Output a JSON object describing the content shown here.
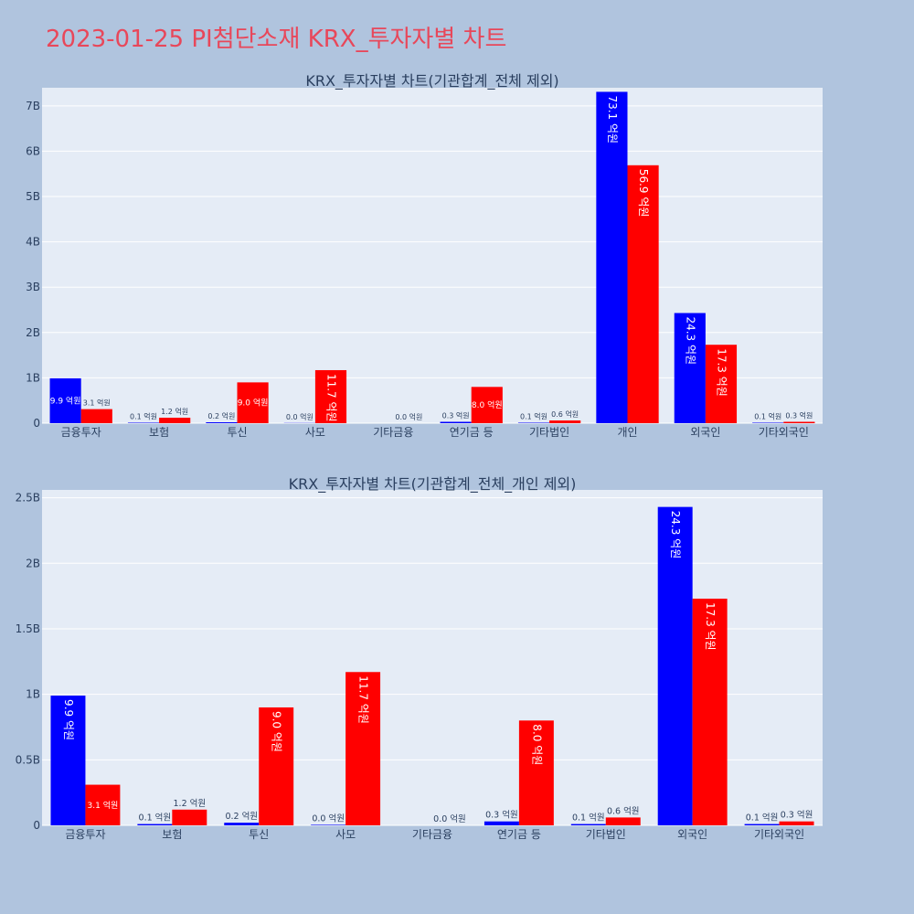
{
  "page": {
    "title": "2023-01-25 PI첨단소재 KRX_투자자별 차트"
  },
  "colors": {
    "background": "#b0c4de",
    "plot_background": "#e5ecf6",
    "title": "#e8475a",
    "buy": "#0000ff",
    "sell": "#ff0000",
    "text": "#2a3f5f"
  },
  "chart_data": [
    {
      "type": "bar",
      "title": "KRX_투자자별 차트(기관합계_전체 제외)",
      "categories": [
        "금융투자",
        "보험",
        "투신",
        "사모",
        "기타금융",
        "연기금 등",
        "기타법인",
        "개인",
        "외국인",
        "기타외국인"
      ],
      "series": [
        {
          "color": "#0000ff",
          "values": [
            990000000,
            10000000,
            20000000,
            4000000,
            0,
            30000000,
            10000000,
            7310000000,
            2430000000,
            10000000
          ],
          "labels": [
            "9.9 억원",
            "0.1 억원",
            "0.2 억원",
            "0.0 억원",
            "",
            "0.3 억원",
            "0.1 억원",
            "73.1 억원",
            "24.3 억원",
            "0.1 억원"
          ]
        },
        {
          "color": "#ff0000",
          "values": [
            310000000,
            120000000,
            900000000,
            1170000000,
            0,
            800000000,
            60000000,
            5690000000,
            1730000000,
            30000000
          ],
          "labels": [
            "3.1 억원",
            "1.2 억원",
            "9.0 억원",
            "11.7 억원",
            "0.0 억원",
            "8.0 억원",
            "0.6 억원",
            "56.9 억원",
            "17.3 억원",
            "0.3 억원"
          ]
        }
      ],
      "yticks": [
        0,
        1000000000,
        2000000000,
        3000000000,
        4000000000,
        5000000000,
        6000000000,
        7000000000
      ],
      "yticklabels": [
        "0",
        "1B",
        "2B",
        "3B",
        "4B",
        "5B",
        "6B",
        "7B"
      ],
      "ylim": [
        0,
        7400000000
      ],
      "grid": true
    },
    {
      "type": "bar",
      "title": "KRX_투자자별 차트(기관합계_전체_개인 제외)",
      "categories": [
        "금융투자",
        "보험",
        "투신",
        "사모",
        "기타금융",
        "연기금 등",
        "기타법인",
        "외국인",
        "기타외국인"
      ],
      "series": [
        {
          "color": "#0000ff",
          "values": [
            990000000,
            10000000,
            20000000,
            4000000,
            0,
            30000000,
            10000000,
            2430000000,
            10000000
          ],
          "labels": [
            "9.9 억원",
            "0.1 억원",
            "0.2 억원",
            "0.0 억원",
            "",
            "0.3 억원",
            "0.1 억원",
            "24.3 억원",
            "0.1 억원"
          ]
        },
        {
          "color": "#ff0000",
          "values": [
            310000000,
            120000000,
            900000000,
            1170000000,
            0,
            800000000,
            60000000,
            1730000000,
            30000000
          ],
          "labels": [
            "3.1 억원",
            "1.2 억원",
            "9.0 억원",
            "11.7 억원",
            "0.0 억원",
            "8.0 억원",
            "0.6 억원",
            "17.3 억원",
            "0.3 억원"
          ]
        }
      ],
      "yticks": [
        0,
        500000000,
        1000000000,
        1500000000,
        2000000000,
        2500000000
      ],
      "yticklabels": [
        "0",
        "0.5B",
        "1B",
        "1.5B",
        "2B",
        "2.5B"
      ],
      "ylim": [
        0,
        2560000000
      ],
      "grid": true
    }
  ]
}
